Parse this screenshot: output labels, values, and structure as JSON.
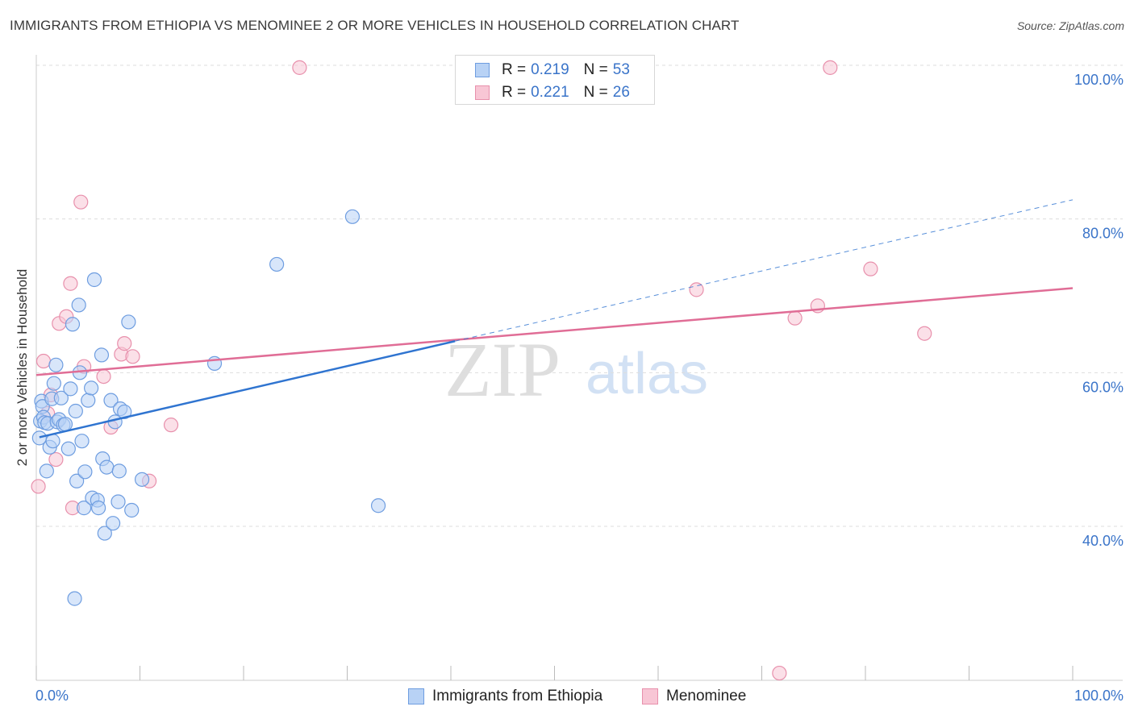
{
  "title": "IMMIGRANTS FROM ETHIOPIA VS MENOMINEE 2 OR MORE VEHICLES IN HOUSEHOLD CORRELATION CHART",
  "source": "Source: ZipAtlas.com",
  "watermark": {
    "zip": "ZIP",
    "atlas": "atlas"
  },
  "legend": {
    "series1": {
      "r_label": "R =",
      "r_value": "0.219",
      "n_label": "N =",
      "n_value": "53"
    },
    "series2": {
      "r_label": "R =",
      "r_value": "0.221",
      "n_label": "N =",
      "n_value": "26"
    }
  },
  "bottom_legend": {
    "series1": "Immigrants from Ethiopia",
    "series2": "Menominee"
  },
  "colors": {
    "blue_fill": "#b8d2f5",
    "blue_stroke": "#6e9de0",
    "blue_line": "#2f74d0",
    "pink_fill": "#f8c6d5",
    "pink_stroke": "#e890ac",
    "pink_line": "#e06d96",
    "tick_text": "#3a74c9",
    "grid": "#dddddd"
  },
  "chart_data": {
    "type": "scatter",
    "title": "IMMIGRANTS FROM ETHIOPIA VS MENOMINEE 2 OR MORE VEHICLES IN HOUSEHOLD CORRELATION CHART",
    "xlabel": "",
    "ylabel": "2 or more Vehicles in Household",
    "xlim": [
      0,
      100
    ],
    "ylim": [
      20,
      102
    ],
    "x_tick_labels": [
      "0.0%",
      "100.0%"
    ],
    "y_ticks": [
      {
        "value": 40,
        "label": "40.0%"
      },
      {
        "value": 60,
        "label": "60.0%"
      },
      {
        "value": 80,
        "label": "80.0%"
      },
      {
        "value": 100,
        "label": "100.0%"
      }
    ],
    "grid": true,
    "series": [
      {
        "name": "Immigrants from Ethiopia",
        "r": 0.219,
        "n": 53,
        "points": [
          [
            0.3,
            51.5
          ],
          [
            0.4,
            53.7
          ],
          [
            0.5,
            56.3
          ],
          [
            0.6,
            55.6
          ],
          [
            0.7,
            54.2
          ],
          [
            0.8,
            53.5
          ],
          [
            1.0,
            47.2
          ],
          [
            1.1,
            53.4
          ],
          [
            1.3,
            50.3
          ],
          [
            1.5,
            56.6
          ],
          [
            1.6,
            51.1
          ],
          [
            1.7,
            58.6
          ],
          [
            1.9,
            61.0
          ],
          [
            2.0,
            53.6
          ],
          [
            2.2,
            53.9
          ],
          [
            2.4,
            56.7
          ],
          [
            2.6,
            53.2
          ],
          [
            2.8,
            53.3
          ],
          [
            3.1,
            50.1
          ],
          [
            3.3,
            57.9
          ],
          [
            3.5,
            66.3
          ],
          [
            3.7,
            30.6
          ],
          [
            3.8,
            55.0
          ],
          [
            3.9,
            45.9
          ],
          [
            4.1,
            68.8
          ],
          [
            4.2,
            60.0
          ],
          [
            4.4,
            51.1
          ],
          [
            4.6,
            42.4
          ],
          [
            4.7,
            47.1
          ],
          [
            5.0,
            56.4
          ],
          [
            5.3,
            58.0
          ],
          [
            5.4,
            43.7
          ],
          [
            5.6,
            72.1
          ],
          [
            5.9,
            43.4
          ],
          [
            6.0,
            42.4
          ],
          [
            6.3,
            62.3
          ],
          [
            6.4,
            48.8
          ],
          [
            6.6,
            39.1
          ],
          [
            6.8,
            47.7
          ],
          [
            7.2,
            56.4
          ],
          [
            7.4,
            40.4
          ],
          [
            7.6,
            53.6
          ],
          [
            7.9,
            43.2
          ],
          [
            8.0,
            47.2
          ],
          [
            8.1,
            55.3
          ],
          [
            8.5,
            54.9
          ],
          [
            8.9,
            66.6
          ],
          [
            9.2,
            42.1
          ],
          [
            10.2,
            46.1
          ],
          [
            17.2,
            61.2
          ],
          [
            23.2,
            74.1
          ],
          [
            30.5,
            80.3
          ],
          [
            33.0,
            42.7
          ]
        ],
        "trend": {
          "x0": 0.3,
          "y0": 51.6,
          "x1": 40.4,
          "y1": 64.1,
          "dashed_to_x": 100,
          "dashed_to_y": 82.5
        }
      },
      {
        "name": "Menominee",
        "r": 0.221,
        "n": 26,
        "points": [
          [
            0.2,
            45.2
          ],
          [
            0.7,
            61.5
          ],
          [
            1.1,
            54.7
          ],
          [
            1.4,
            57.1
          ],
          [
            1.9,
            48.7
          ],
          [
            2.2,
            66.4
          ],
          [
            2.9,
            67.3
          ],
          [
            3.3,
            71.6
          ],
          [
            3.5,
            42.4
          ],
          [
            4.3,
            82.2
          ],
          [
            4.6,
            60.8
          ],
          [
            6.5,
            59.5
          ],
          [
            7.2,
            52.9
          ],
          [
            8.2,
            62.4
          ],
          [
            8.5,
            63.8
          ],
          [
            9.3,
            62.1
          ],
          [
            10.9,
            45.9
          ],
          [
            13.0,
            53.2
          ],
          [
            25.4,
            99.7
          ],
          [
            63.7,
            70.8
          ],
          [
            71.7,
            20.9
          ],
          [
            73.2,
            67.1
          ],
          [
            75.4,
            68.7
          ],
          [
            76.6,
            99.7
          ],
          [
            80.5,
            73.5
          ],
          [
            85.7,
            65.1
          ]
        ],
        "trend": {
          "x0": 0,
          "y0": 59.7,
          "x1": 100,
          "y1": 71.0
        }
      }
    ]
  }
}
